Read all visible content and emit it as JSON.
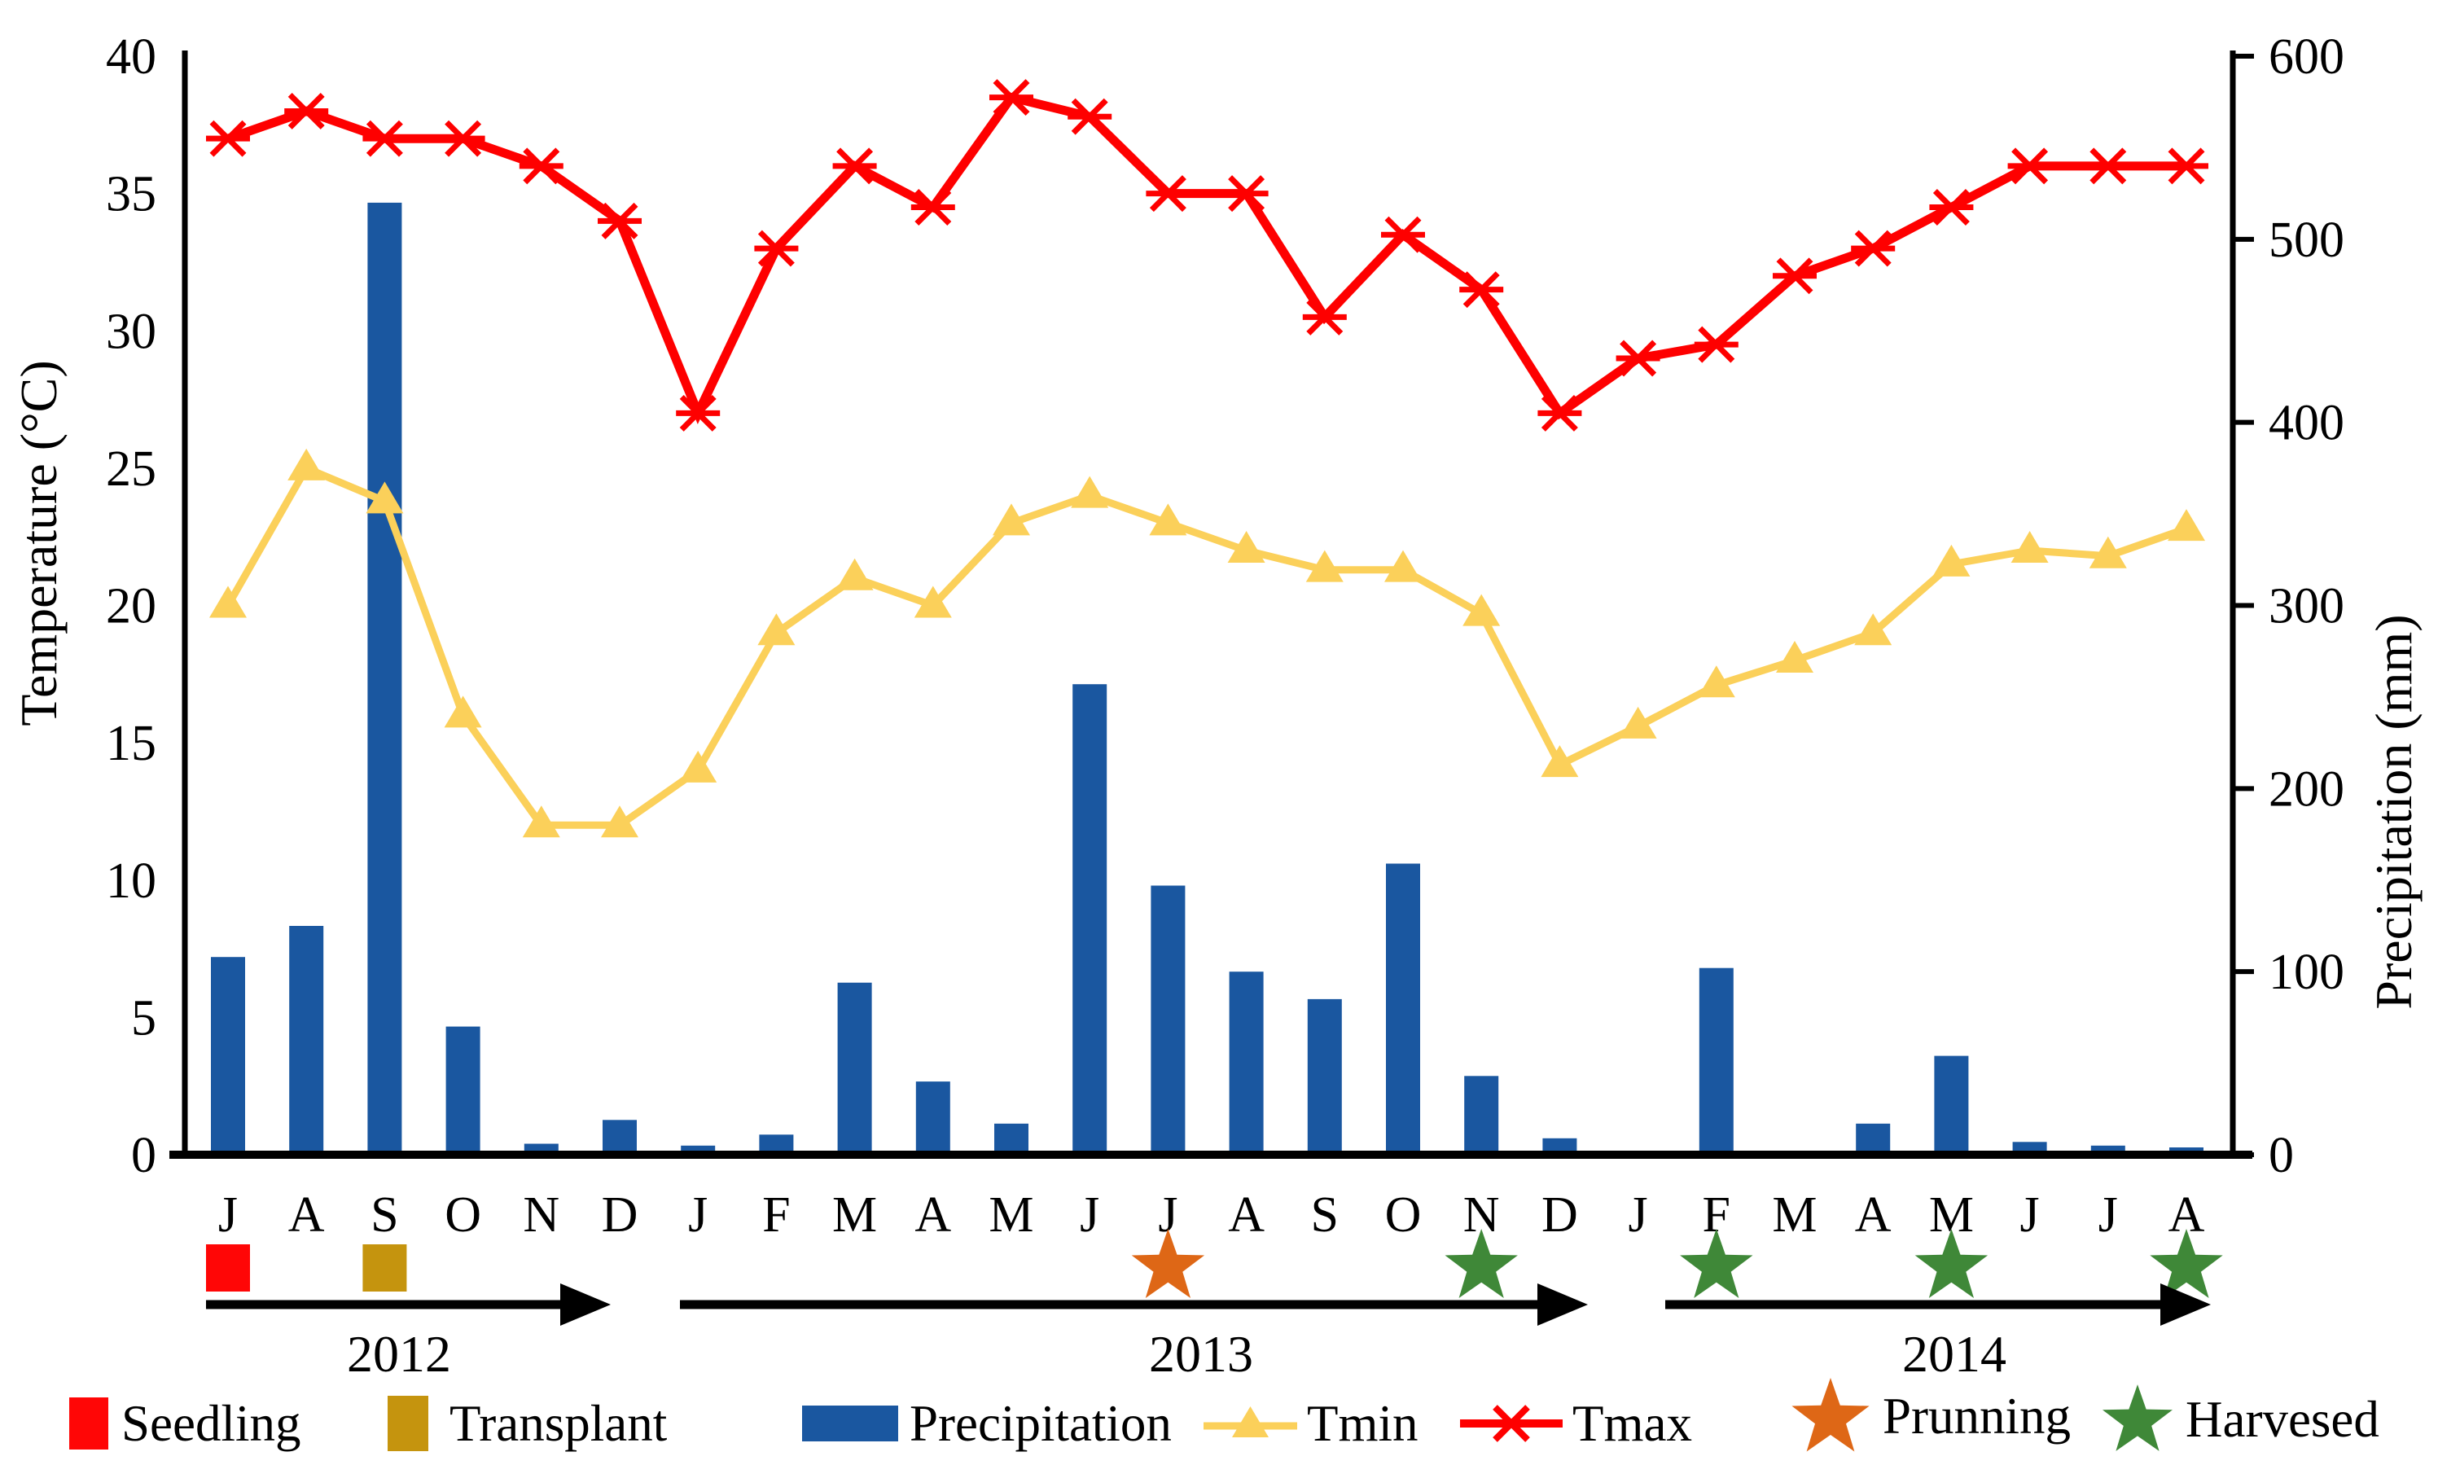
{
  "chart_data": {
    "type": "bar",
    "subtype": "bar-line-combo",
    "categories": [
      "J",
      "A",
      "S",
      "O",
      "N",
      "D",
      "J",
      "F",
      "M",
      "A",
      "M",
      "J",
      "J",
      "A",
      "S",
      "O",
      "N",
      "D",
      "J",
      "F",
      "M",
      "A",
      "M",
      "J",
      "J",
      "A"
    ],
    "year_groups": [
      {
        "label": "2012",
        "from": 0,
        "to": 5
      },
      {
        "label": "2013",
        "from": 6,
        "to": 17
      },
      {
        "label": "2014",
        "from": 18,
        "to": 25
      }
    ],
    "series": [
      {
        "name": "Precipitation",
        "type": "bar",
        "axis": "right",
        "values": [
          108,
          125,
          520,
          70,
          6,
          19,
          5,
          11,
          94,
          40,
          17,
          257,
          147,
          100,
          85,
          159,
          43,
          9,
          0,
          102,
          0,
          17,
          54,
          7,
          5,
          4
        ]
      },
      {
        "name": "Tmin",
        "type": "line",
        "marker": "triangle",
        "axis": "left",
        "values": [
          20,
          25,
          23.8,
          16,
          12,
          12,
          14,
          19,
          21,
          20,
          23,
          24,
          23,
          22,
          21.3,
          21.3,
          19.7,
          14.2,
          15.6,
          17.1,
          18,
          19,
          21.5,
          22,
          21.8,
          22.8
        ]
      },
      {
        "name": "Tmax",
        "type": "line",
        "marker": "x-dash",
        "axis": "left",
        "values": [
          37,
          38,
          37,
          37,
          36,
          34,
          27,
          33,
          36,
          34.5,
          38.5,
          37.8,
          35,
          35,
          30.5,
          33.5,
          31.5,
          27,
          29,
          29.5,
          32,
          33,
          34.5,
          36,
          36,
          36
        ]
      }
    ],
    "events": [
      {
        "name": "seedling",
        "marker": "square",
        "month_index": 0
      },
      {
        "name": "transplant",
        "marker": "square",
        "month_index": 2
      },
      {
        "name": "prunning",
        "marker": "star",
        "month_index": 12
      },
      {
        "name": "harvested",
        "marker": "star",
        "month_index": 16
      },
      {
        "name": "harvested",
        "marker": "star",
        "month_index": 19
      },
      {
        "name": "harvested",
        "marker": "star",
        "month_index": 22
      },
      {
        "name": "harvested",
        "marker": "star",
        "month_index": 25
      }
    ],
    "left_axis": {
      "title": "Temperature (°C)",
      "min": 0,
      "max": 40,
      "step": 5,
      "ticks": [
        0,
        5,
        10,
        15,
        20,
        25,
        30,
        35,
        40
      ]
    },
    "right_axis": {
      "title": "Precipitation (mm)",
      "min": 0,
      "max": 600,
      "step": 100,
      "ticks": [
        0,
        100,
        200,
        300,
        400,
        500,
        600
      ]
    },
    "grid": false,
    "legend_position": "bottom",
    "colors": {
      "precipitation": "#1A57A0",
      "tmin": "#FBD05A",
      "tmax": "#FE0000",
      "seedling": "#FF0606",
      "transplant": "#C5940E",
      "prunning": "#DE6716",
      "harvested": "#3F8838"
    }
  },
  "legend": {
    "items": [
      {
        "label": "Seedling"
      },
      {
        "label": "Transplant"
      },
      {
        "label": "Precipitation"
      },
      {
        "label": "Tmin"
      },
      {
        "label": "Tmax"
      },
      {
        "label": "Prunning"
      },
      {
        "label": "Harvesed"
      }
    ]
  }
}
